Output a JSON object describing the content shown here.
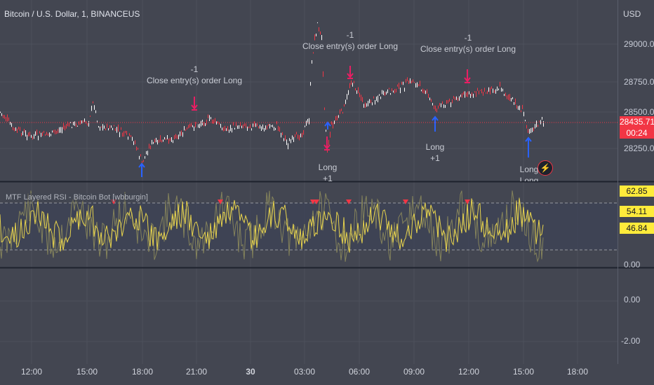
{
  "symbol_title": "Bitcoin / U.S. Dollar, 1, BINANCEUS",
  "currency": "USD",
  "price_axis": {
    "ticks": [
      "29000.00",
      "28750.00",
      "28500.00",
      "28250.00"
    ]
  },
  "last_price": {
    "value": "28435.71",
    "countdown": "00:24"
  },
  "indicator": {
    "title": "MTF Layered RSI - Bitcoin Bot [wbburgin]",
    "values": [
      "62.85",
      "54.11",
      "46.84"
    ],
    "axis_ticks": [
      "0.00"
    ]
  },
  "lower_pane": {
    "axis_ticks": [
      "0.00",
      "-2.00"
    ]
  },
  "time_axis": [
    {
      "label": "12:00",
      "bold": false
    },
    {
      "label": "15:00",
      "bold": false
    },
    {
      "label": "18:00",
      "bold": false
    },
    {
      "label": "21:00",
      "bold": false
    },
    {
      "label": "30",
      "bold": true
    },
    {
      "label": "03:00",
      "bold": false
    },
    {
      "label": "06:00",
      "bold": false
    },
    {
      "label": "09:00",
      "bold": false
    },
    {
      "label": "12:00",
      "bold": false
    },
    {
      "label": "15:00",
      "bold": false
    },
    {
      "label": "18:00",
      "bold": false
    }
  ],
  "trade_labels": [
    {
      "type": "exit",
      "qty": "-1",
      "text": "Close entry(s) order Long"
    },
    {
      "type": "exit",
      "qty": "-1",
      "text": "Close entry(s) order Long"
    },
    {
      "type": "exit",
      "qty": "-1",
      "text": "Close entry(s) order Long"
    },
    {
      "type": "entry",
      "text": "Long",
      "qty": "+1"
    },
    {
      "type": "entry",
      "text": "Long",
      "qty": "+1"
    },
    {
      "type": "entry",
      "text": "Long",
      "qty": ""
    }
  ],
  "colors": {
    "background": "#434651",
    "candle_up": "#ffffff",
    "candle_down": "#f23645",
    "rsi_line": "#e8d44d",
    "rsi_band": "#3c4356",
    "entry_arrow": "#2962ff",
    "exit_arrow": "#e91e63",
    "price_line": "#f23645"
  }
}
